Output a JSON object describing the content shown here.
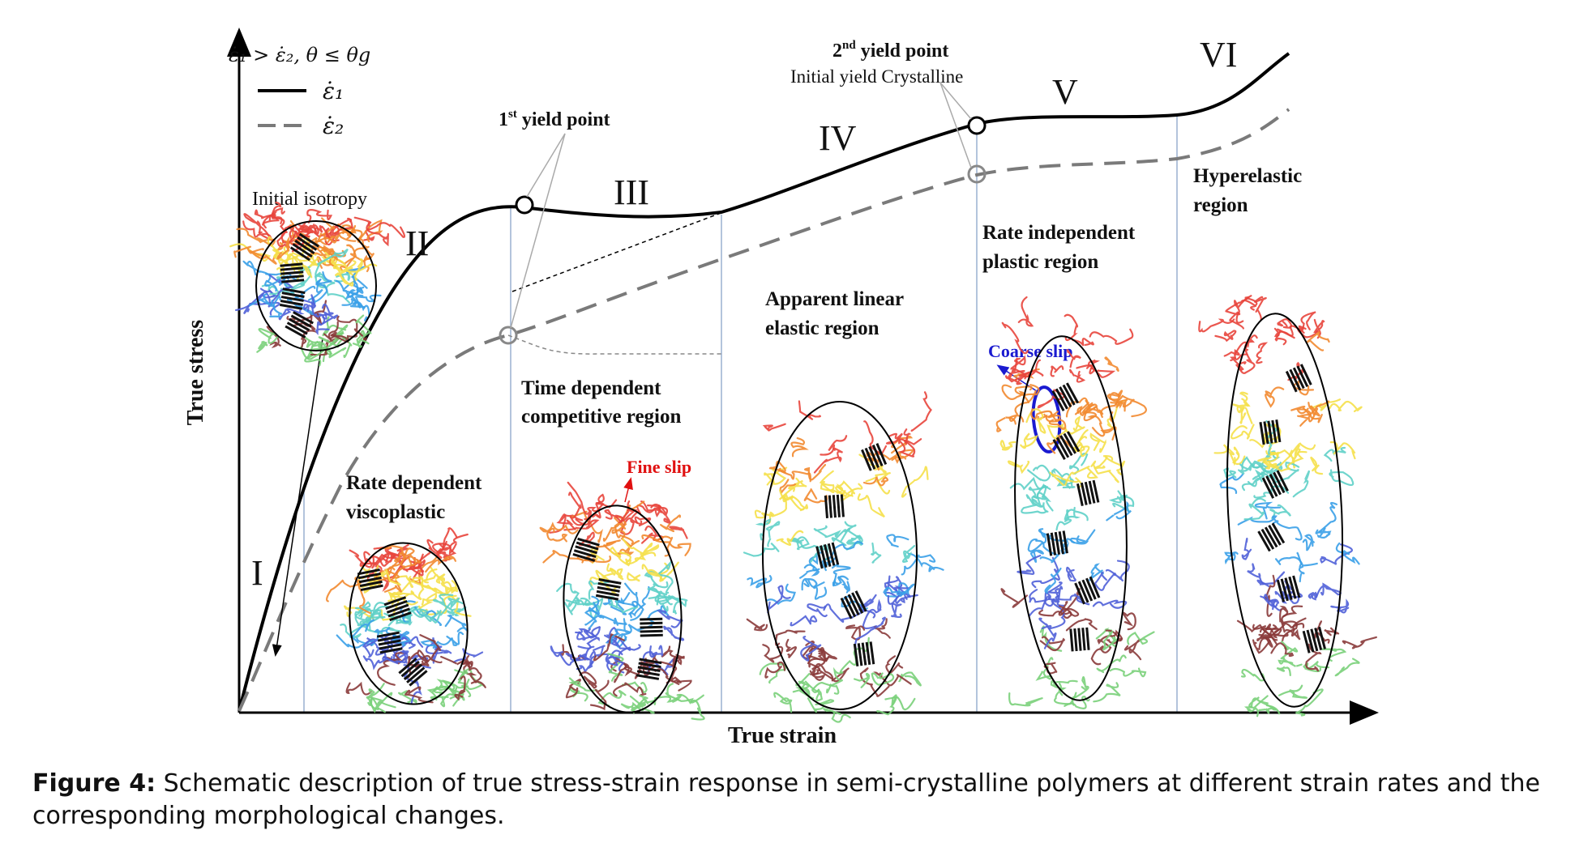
{
  "legend": {
    "condition": "ε̇₁ > ε̇₂,   θ ≤ θg",
    "series1": "ε̇₁",
    "series2": "ε̇₂"
  },
  "axes": {
    "x_label": "True strain",
    "y_label": "True stress"
  },
  "regions": {
    "I": "I",
    "II": "II",
    "III": "III",
    "IV": "IV",
    "V": "V",
    "VI": "VI"
  },
  "annotations": {
    "first_yield_prefix": "1",
    "first_yield_sup": "st",
    "first_yield_suffix": " yield point",
    "second_yield_prefix": "2",
    "second_yield_sup": "nd",
    "second_yield_suffix": " yield point",
    "initial_yield": "Initial yield Crystalline",
    "initial_isotropy": "Initial isotropy",
    "rate_dependent_1": "Rate dependent",
    "rate_dependent_2": "viscoplastic",
    "time_dependent_1": "Time dependent",
    "time_dependent_2": "competitive region",
    "apparent_linear_1": "Apparent linear",
    "apparent_linear_2": "elastic region",
    "rate_independent_1": "Rate independent",
    "rate_independent_2": "plastic region",
    "hyperelastic_1": "Hyperelastic",
    "hyperelastic_2": "region",
    "fine_slip": "Fine slip",
    "coarse_slip": "Coarse slip"
  },
  "caption": {
    "label": "Figure 4:",
    "text": " Schematic description of true stress-strain response in semi-crystalline polymers at different strain rates and the corresponding morphological changes."
  },
  "colors": {
    "curve1": "#000000",
    "curve2": "#808080",
    "divider": "#9ab0d0",
    "fine_slip": "#e01010",
    "coarse_slip": "#1a1ad0"
  }
}
